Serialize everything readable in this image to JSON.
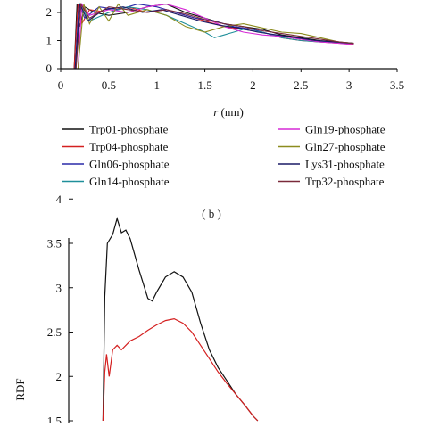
{
  "chart_data": [
    {
      "type": "line",
      "xlabel_var": "r",
      "xlabel_unit": " (nm)",
      "ylabel": "",
      "xlim": [
        0,
        3.5
      ],
      "ylim": [
        0,
        2.3
      ],
      "x_ticks": [
        "0",
        "0.5",
        "1",
        "1.5",
        "2",
        "2.5",
        "3",
        "3.5"
      ],
      "y_ticks": [
        "0",
        "1",
        "2"
      ],
      "legend_position": "below",
      "series": [
        {
          "name": "Trp01-phosphate",
          "color": "#111111",
          "points": [
            [
              0.14,
              0
            ],
            [
              0.17,
              2.3
            ],
            [
              0.2,
              1.5
            ],
            [
              0.25,
              2.2
            ],
            [
              0.35,
              2.0
            ],
            [
              0.5,
              1.9
            ],
            [
              0.7,
              2.0
            ],
            [
              0.9,
              2.2
            ],
            [
              1.1,
              2.3
            ],
            [
              1.3,
              2.0
            ],
            [
              1.5,
              1.8
            ],
            [
              1.7,
              1.6
            ],
            [
              1.9,
              1.5
            ],
            [
              2.1,
              1.4
            ],
            [
              2.3,
              1.2
            ],
            [
              2.5,
              1.1
            ],
            [
              2.7,
              1.0
            ],
            [
              2.9,
              0.95
            ],
            [
              3.05,
              0.9
            ]
          ]
        },
        {
          "name": "Trp04-phosphate",
          "color": "#d42020",
          "points": [
            [
              0.14,
              0
            ],
            [
              0.18,
              2.3
            ],
            [
              0.22,
              1.6
            ],
            [
              0.3,
              2.1
            ],
            [
              0.5,
              2.0
            ],
            [
              0.7,
              2.2
            ],
            [
              0.9,
              2.0
            ],
            [
              1.1,
              2.1
            ],
            [
              1.3,
              1.9
            ],
            [
              1.5,
              1.7
            ],
            [
              1.7,
              1.5
            ],
            [
              1.9,
              1.4
            ],
            [
              2.1,
              1.3
            ],
            [
              2.3,
              1.1
            ],
            [
              2.5,
              1.0
            ],
            [
              2.7,
              0.95
            ],
            [
              2.9,
              0.9
            ],
            [
              3.05,
              0.88
            ]
          ]
        },
        {
          "name": "Gln06-phosphate",
          "color": "#2a2aa8",
          "points": [
            [
              0.15,
              0
            ],
            [
              0.19,
              2.3
            ],
            [
              0.25,
              1.8
            ],
            [
              0.4,
              2.2
            ],
            [
              0.6,
              2.1
            ],
            [
              0.8,
              2.3
            ],
            [
              1.0,
              2.2
            ],
            [
              1.2,
              2.0
            ],
            [
              1.4,
              1.8
            ],
            [
              1.6,
              1.7
            ],
            [
              1.8,
              1.5
            ],
            [
              2.0,
              1.4
            ],
            [
              2.2,
              1.2
            ],
            [
              2.4,
              1.1
            ],
            [
              2.6,
              1.0
            ],
            [
              2.8,
              0.95
            ],
            [
              3.05,
              0.9
            ]
          ]
        },
        {
          "name": "Gln14-phosphate",
          "color": "#1f8f9a",
          "points": [
            [
              0.16,
              0
            ],
            [
              0.2,
              2.3
            ],
            [
              0.3,
              1.7
            ],
            [
              0.5,
              2.0
            ],
            [
              0.7,
              2.2
            ],
            [
              0.9,
              2.1
            ],
            [
              1.1,
              1.9
            ],
            [
              1.3,
              1.6
            ],
            [
              1.5,
              1.3
            ],
            [
              1.6,
              1.1
            ],
            [
              1.7,
              1.2
            ],
            [
              1.9,
              1.4
            ],
            [
              2.1,
              1.3
            ],
            [
              2.3,
              1.1
            ],
            [
              2.5,
              1.0
            ],
            [
              2.7,
              0.95
            ],
            [
              3.05,
              0.9
            ]
          ]
        },
        {
          "name": "Gln19-phosphate",
          "color": "#d62ad6",
          "points": [
            [
              0.18,
              0
            ],
            [
              0.22,
              2.3
            ],
            [
              0.3,
              1.9
            ],
            [
              0.5,
              2.1
            ],
            [
              0.7,
              2.0
            ],
            [
              0.9,
              2.2
            ],
            [
              1.1,
              2.3
            ],
            [
              1.3,
              2.1
            ],
            [
              1.5,
              1.8
            ],
            [
              1.7,
              1.5
            ],
            [
              1.9,
              1.3
            ],
            [
              2.1,
              1.2
            ],
            [
              2.3,
              1.15
            ],
            [
              2.5,
              1.05
            ],
            [
              2.7,
              0.95
            ],
            [
              2.9,
              0.9
            ],
            [
              3.05,
              0.85
            ]
          ]
        },
        {
          "name": "Gln27-phosphate",
          "color": "#8c8c1e",
          "points": [
            [
              0.18,
              0
            ],
            [
              0.24,
              2.3
            ],
            [
              0.3,
              1.6
            ],
            [
              0.4,
              2.2
            ],
            [
              0.5,
              1.7
            ],
            [
              0.6,
              2.3
            ],
            [
              0.7,
              1.9
            ],
            [
              0.9,
              2.1
            ],
            [
              1.1,
              1.9
            ],
            [
              1.3,
              1.5
            ],
            [
              1.5,
              1.3
            ],
            [
              1.7,
              1.5
            ],
            [
              1.9,
              1.6
            ],
            [
              2.1,
              1.45
            ],
            [
              2.3,
              1.3
            ],
            [
              2.5,
              1.25
            ],
            [
              2.7,
              1.1
            ],
            [
              2.9,
              0.95
            ],
            [
              3.05,
              0.9
            ]
          ]
        },
        {
          "name": "Lys31-phosphate",
          "color": "#1a1a66",
          "points": [
            [
              0.15,
              0
            ],
            [
              0.2,
              2.3
            ],
            [
              0.28,
              1.7
            ],
            [
              0.45,
              2.1
            ],
            [
              0.65,
              2.2
            ],
            [
              0.85,
              2.0
            ],
            [
              1.05,
              2.1
            ],
            [
              1.25,
              1.9
            ],
            [
              1.45,
              1.7
            ],
            [
              1.65,
              1.55
            ],
            [
              1.85,
              1.45
            ],
            [
              2.05,
              1.3
            ],
            [
              2.25,
              1.2
            ],
            [
              2.45,
              1.1
            ],
            [
              2.65,
              1.0
            ],
            [
              2.85,
              0.95
            ],
            [
              3.05,
              0.9
            ]
          ]
        },
        {
          "name": "Trp32-phosphate",
          "color": "#7a2a3a",
          "points": [
            [
              0.16,
              0
            ],
            [
              0.21,
              2.3
            ],
            [
              0.3,
              1.8
            ],
            [
              0.5,
              2.2
            ],
            [
              0.7,
              2.1
            ],
            [
              0.9,
              2.0
            ],
            [
              1.1,
              2.1
            ],
            [
              1.3,
              1.95
            ],
            [
              1.5,
              1.75
            ],
            [
              1.7,
              1.6
            ],
            [
              1.9,
              1.5
            ],
            [
              2.1,
              1.35
            ],
            [
              2.3,
              1.25
            ],
            [
              2.5,
              1.15
            ],
            [
              2.7,
              1.05
            ],
            [
              2.9,
              0.95
            ],
            [
              3.05,
              0.9
            ]
          ]
        }
      ]
    },
    {
      "type": "line",
      "ylabel": "RDF",
      "ylim": [
        1.5,
        4.1
      ],
      "y_ticks": [
        "1.5",
        "2",
        "2.5",
        "3",
        "3.5",
        "4"
      ],
      "series": [
        {
          "name": "",
          "color": "#111111",
          "points": [
            [
              0.39,
              1.5
            ],
            [
              0.41,
              2.9
            ],
            [
              0.44,
              3.5
            ],
            [
              0.5,
              3.6
            ],
            [
              0.55,
              3.78
            ],
            [
              0.6,
              3.62
            ],
            [
              0.65,
              3.65
            ],
            [
              0.7,
              3.55
            ],
            [
              0.8,
              3.2
            ],
            [
              0.9,
              2.88
            ],
            [
              0.95,
              2.85
            ],
            [
              1.0,
              2.95
            ],
            [
              1.1,
              3.12
            ],
            [
              1.2,
              3.18
            ],
            [
              1.3,
              3.12
            ],
            [
              1.4,
              2.95
            ],
            [
              1.5,
              2.6
            ],
            [
              1.6,
              2.3
            ],
            [
              1.7,
              2.1
            ],
            [
              1.8,
              1.95
            ],
            [
              1.9,
              1.8
            ],
            [
              2.0,
              1.68
            ],
            [
              2.1,
              1.55
            ],
            [
              2.15,
              1.5
            ]
          ]
        },
        {
          "name": "",
          "color": "#d42020",
          "points": [
            [
              0.39,
              1.5
            ],
            [
              0.41,
              2.05
            ],
            [
              0.43,
              2.25
            ],
            [
              0.46,
              2.0
            ],
            [
              0.5,
              2.3
            ],
            [
              0.55,
              2.35
            ],
            [
              0.6,
              2.3
            ],
            [
              0.7,
              2.4
            ],
            [
              0.8,
              2.45
            ],
            [
              0.9,
              2.52
            ],
            [
              1.0,
              2.58
            ],
            [
              1.1,
              2.63
            ],
            [
              1.2,
              2.65
            ],
            [
              1.3,
              2.6
            ],
            [
              1.4,
              2.5
            ],
            [
              1.5,
              2.35
            ],
            [
              1.6,
              2.2
            ],
            [
              1.7,
              2.05
            ],
            [
              1.8,
              1.92
            ],
            [
              1.9,
              1.8
            ],
            [
              2.0,
              1.68
            ],
            [
              2.1,
              1.55
            ],
            [
              2.15,
              1.5
            ]
          ]
        }
      ],
      "panel_label": "( b )"
    }
  ]
}
